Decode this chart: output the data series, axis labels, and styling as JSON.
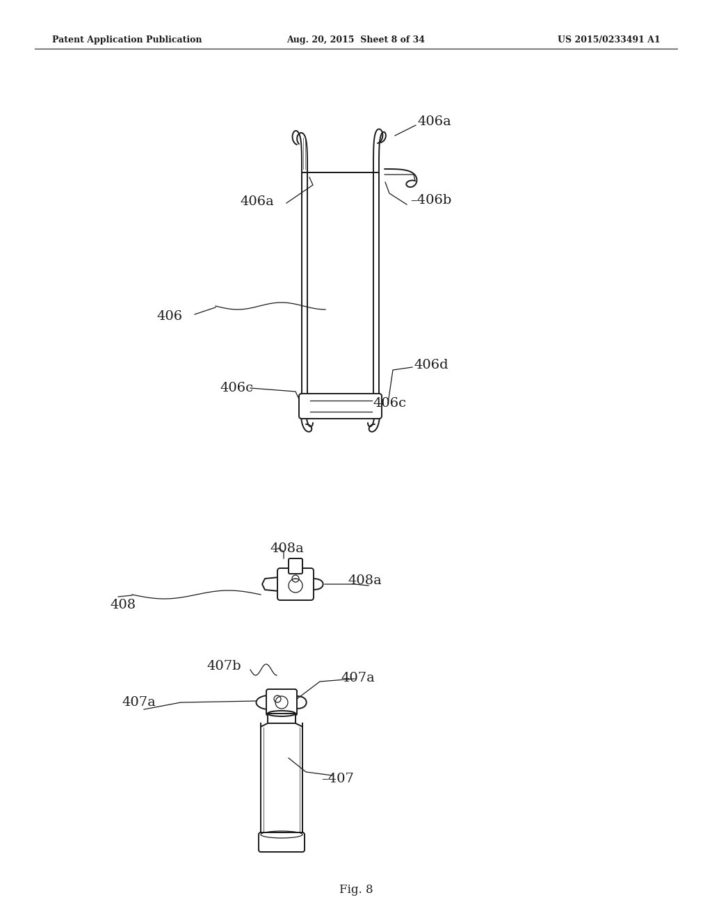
{
  "bg_color": "#ffffff",
  "header_left": "Patent Application Publication",
  "header_mid": "Aug. 20, 2015  Sheet 8 of 34",
  "header_right": "US 2015/0233491 A1",
  "fig_label": "Fig. 8",
  "line_color": "#1a1a1a",
  "lw_main": 1.4,
  "lw_thin": 0.9,
  "label_fs": 14,
  "fig_label_fs": 12
}
